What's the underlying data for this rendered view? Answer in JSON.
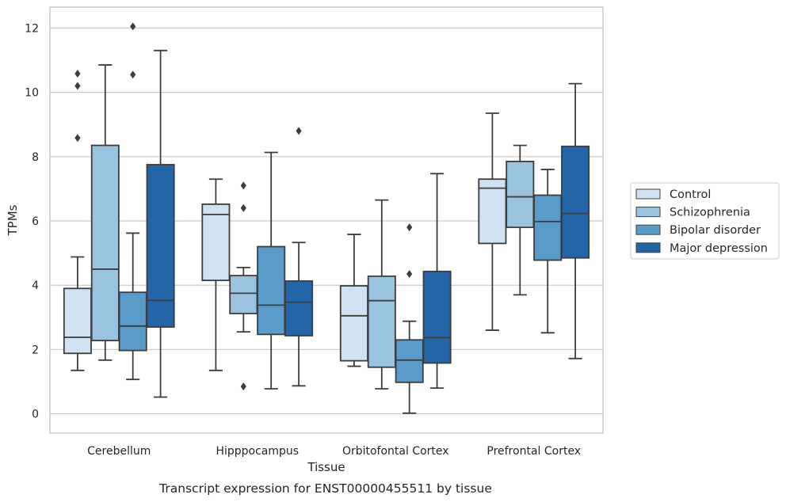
{
  "caption": "Transcript expression for ENST00000455511 by tissue",
  "chart_data": {
    "type": "box",
    "xlabel": "Tissue",
    "ylabel": "TPMs",
    "ylim": [
      -0.6,
      12.65
    ],
    "yticks": [
      0,
      2,
      4,
      6,
      8,
      10,
      12
    ],
    "grid": "horizontal",
    "legend_position": "right",
    "categories": [
      "Cerebellum",
      "Hipppocampus",
      "Orbitofontal Cortex",
      "Prefrontal Cortex"
    ],
    "series": [
      {
        "name": "Control",
        "color": "#d0e1f2",
        "boxes": [
          {
            "whislo": 1.35,
            "q1": 1.88,
            "med": 2.38,
            "q3": 3.9,
            "whishi": 4.88,
            "fliers": [
              8.58,
              10.2,
              10.58
            ]
          },
          {
            "whislo": 1.35,
            "q1": 4.15,
            "med": 6.2,
            "q3": 6.52,
            "whishi": 7.3,
            "fliers": []
          },
          {
            "whislo": 1.48,
            "q1": 1.65,
            "med": 3.05,
            "q3": 3.98,
            "whishi": 5.58,
            "fliers": []
          },
          {
            "whislo": 2.6,
            "q1": 5.3,
            "med": 7.02,
            "q3": 7.3,
            "whishi": 9.35,
            "fliers": []
          }
        ]
      },
      {
        "name": "Schizophrenia",
        "color": "#9ac3df",
        "boxes": [
          {
            "whislo": 1.67,
            "q1": 2.28,
            "med": 4.5,
            "q3": 8.35,
            "whishi": 10.85,
            "fliers": []
          },
          {
            "whislo": 2.55,
            "q1": 3.12,
            "med": 3.75,
            "q3": 4.3,
            "whishi": 4.55,
            "fliers": [
              0.85,
              6.4,
              7.1
            ]
          },
          {
            "whislo": 0.78,
            "q1": 1.45,
            "med": 3.52,
            "q3": 4.28,
            "whishi": 6.65,
            "fliers": []
          },
          {
            "whislo": 3.7,
            "q1": 5.8,
            "med": 6.75,
            "q3": 7.85,
            "whishi": 8.35,
            "fliers": []
          }
        ]
      },
      {
        "name": "Bipolar disorder",
        "color": "#5b9bc9",
        "boxes": [
          {
            "whislo": 1.07,
            "q1": 1.97,
            "med": 2.73,
            "q3": 3.78,
            "whishi": 5.62,
            "fliers": [
              10.55,
              12.05
            ]
          },
          {
            "whislo": 0.78,
            "q1": 2.47,
            "med": 3.38,
            "q3": 5.2,
            "whishi": 8.13,
            "fliers": []
          },
          {
            "whislo": 0.02,
            "q1": 0.98,
            "med": 1.67,
            "q3": 2.3,
            "whishi": 2.88,
            "fliers": [
              4.35,
              5.8
            ]
          },
          {
            "whislo": 2.52,
            "q1": 4.78,
            "med": 5.98,
            "q3": 6.8,
            "whishi": 7.6,
            "fliers": []
          }
        ]
      },
      {
        "name": "Major depression",
        "color": "#2465a8",
        "boxes": [
          {
            "whislo": 0.52,
            "q1": 2.7,
            "med": 3.53,
            "q3": 7.75,
            "whishi": 11.3,
            "fliers": []
          },
          {
            "whislo": 0.87,
            "q1": 2.43,
            "med": 3.47,
            "q3": 4.13,
            "whishi": 5.33,
            "fliers": [
              8.8
            ]
          },
          {
            "whislo": 0.8,
            "q1": 1.58,
            "med": 2.37,
            "q3": 4.43,
            "whishi": 7.47,
            "fliers": []
          },
          {
            "whislo": 1.72,
            "q1": 4.85,
            "med": 6.23,
            "q3": 8.32,
            "whishi": 10.27,
            "fliers": []
          }
        ]
      }
    ]
  }
}
